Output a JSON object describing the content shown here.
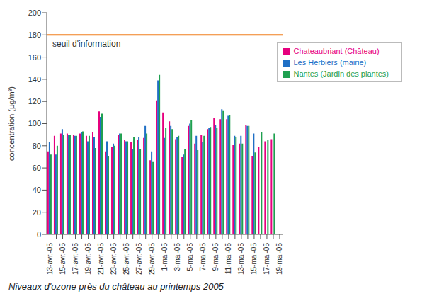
{
  "chart_data": {
    "type": "bar",
    "caption": "Niveaux d'ozone près du château au printemps 2005",
    "y_label": "concentration (µg/m³)",
    "categories": [
      "13-avr.-05",
      null,
      "15-avr.-05",
      null,
      "17-avr.-05",
      null,
      "19-avr.-05",
      null,
      "21-avr.-05",
      null,
      "23-avr.-05",
      null,
      "25-avr.-05",
      null,
      "27-avr.-05",
      null,
      "29-avr.-05",
      null,
      "1-mai-05",
      null,
      "3-mai-05",
      null,
      "5-mai-05",
      null,
      "7-mai-05",
      null,
      "9-mai-05",
      null,
      "11-mai-05",
      null,
      "13-mai-05",
      null,
      "15-mai-05",
      null,
      "17-mai-05",
      null,
      "19-mai-05"
    ],
    "series": [
      {
        "name": "Chateaubriant (Château)",
        "color": "#e6007e",
        "values": [
          75,
          89,
          91,
          91,
          90,
          91,
          89,
          92,
          111,
          75,
          79,
          90,
          85,
          83,
          85,
          87,
          67,
          121,
          110,
          102,
          86,
          70,
          98,
          82,
          90,
          95,
          105,
          104,
          104,
          81,
          82,
          99,
          71,
          79,
          84,
          86,
          null
        ]
      },
      {
        "name": "Les Herbiers (mairie)",
        "color": "#1f6fc5",
        "values": [
          83,
          72,
          95,
          90,
          89,
          92,
          84,
          88,
          106,
          84,
          82,
          91,
          84,
          77,
          88,
          98,
          75,
          139,
          87,
          98,
          88,
          72,
          100,
          89,
          83,
          96,
          99,
          113,
          107,
          89,
          89,
          98,
          91,
          null,
          null,
          null,
          null
        ]
      },
      {
        "name": "Nantes (Jardin des plantes)",
        "color": "#1fa050",
        "values": [
          72,
          80,
          90,
          90,
          89,
          93,
          89,
          78,
          109,
          71,
          80,
          91,
          84,
          88,
          77,
          91,
          66,
          144,
          96,
          95,
          89,
          77,
          103,
          76,
          89,
          97,
          96,
          112,
          108,
          88,
          82,
          98,
          74,
          92,
          85,
          91,
          null
        ]
      }
    ],
    "threshold": {
      "value": 180,
      "label": "seuil d'information",
      "color": "#f07f1f"
    },
    "ylim": [
      0,
      200
    ],
    "yticks": [
      0,
      20,
      40,
      60,
      80,
      100,
      120,
      140,
      160,
      180,
      200
    ],
    "grid": false,
    "legend": "upper right"
  }
}
